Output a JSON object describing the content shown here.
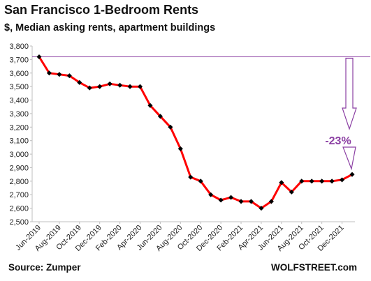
{
  "header": {
    "title": "San Francisco 1-Bedroom Rents",
    "subtitle": "$, Median asking rents, apartment buildings"
  },
  "footer": {
    "source": "Source: Zumper",
    "credit": "WOLFSTREET.com"
  },
  "chart_data": {
    "type": "line",
    "title": "San Francisco 1-Bedroom Rents",
    "subtitle": "$, Median asking rents, apartment buildings",
    "xlabel": "",
    "ylabel": "",
    "ylim": [
      2500,
      3800
    ],
    "yticks": [
      2500,
      2600,
      2700,
      2800,
      2900,
      3000,
      3100,
      3200,
      3300,
      3400,
      3500,
      3600,
      3700,
      3800
    ],
    "ytick_labels": [
      "2,500",
      "2,600",
      "2,700",
      "2,800",
      "2,900",
      "3,000",
      "3,100",
      "3,200",
      "3,300",
      "3,400",
      "3,500",
      "3,600",
      "3,700",
      "3,800"
    ],
    "grid": false,
    "x": [
      "Jun-2019",
      "Jul-2019",
      "Aug-2019",
      "Sep-2019",
      "Oct-2019",
      "Nov-2019",
      "Dec-2019",
      "Jan-2020",
      "Feb-2020",
      "Mar-2020",
      "Apr-2020",
      "May-2020",
      "Jun-2020",
      "Jul-2020",
      "Aug-2020",
      "Sep-2020",
      "Oct-2020",
      "Nov-2020",
      "Dec-2020",
      "Jan-2021",
      "Feb-2021",
      "Mar-2021",
      "Apr-2021",
      "May-2021",
      "Jun-2021",
      "Jul-2021",
      "Aug-2021",
      "Sep-2021",
      "Oct-2021",
      "Nov-2021",
      "Dec-2021",
      "Jan-2022"
    ],
    "xtick_labels": [
      "Jun-2019",
      "Aug-2019",
      "Oct-2019",
      "Dec-2019",
      "Feb-2020",
      "Apr-2020",
      "Jun-2020",
      "Aug-2020",
      "Oct-2020",
      "Dec-2020",
      "Feb-2021",
      "Apr-2021",
      "Jun-2021",
      "Aug-2021",
      "Oct-2021",
      "Dec-2021"
    ],
    "series": [
      {
        "values": [
          3720,
          3600,
          3590,
          3580,
          3530,
          3490,
          3500,
          3520,
          3510,
          3500,
          3500,
          3360,
          3280,
          3200,
          3040,
          2830,
          2800,
          2700,
          2660,
          2680,
          2650,
          2650,
          2600,
          2650,
          2790,
          2720,
          2800,
          2800,
          2800,
          2800,
          2810,
          2850
        ],
        "color": "#ff0000",
        "marker_color": "#000000"
      }
    ],
    "annotations": [
      {
        "text": "-23%",
        "color": "#8b3fa3",
        "reference_value": 3720
      }
    ]
  }
}
